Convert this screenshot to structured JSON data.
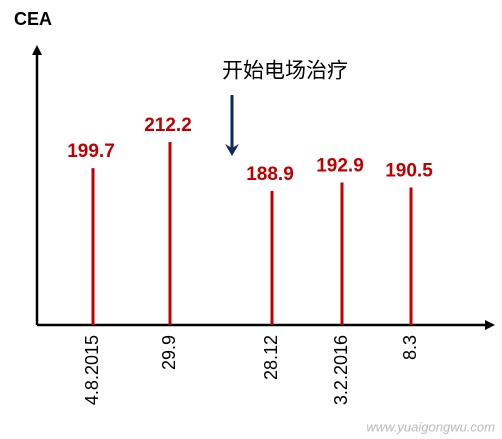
{
  "chart_data": {
    "type": "stem",
    "y_label": "CEA",
    "annotation": "开始电场治疗",
    "watermark": "www.yuaigongwu.com",
    "categories": [
      "4.8.2015",
      "29.9",
      "28.12",
      "3.2.2016",
      "8.3"
    ],
    "values": [
      199.7,
      212.2,
      188.9,
      192.9,
      190.5
    ],
    "color": "#c00000",
    "ylim": [
      125,
      256
    ]
  }
}
